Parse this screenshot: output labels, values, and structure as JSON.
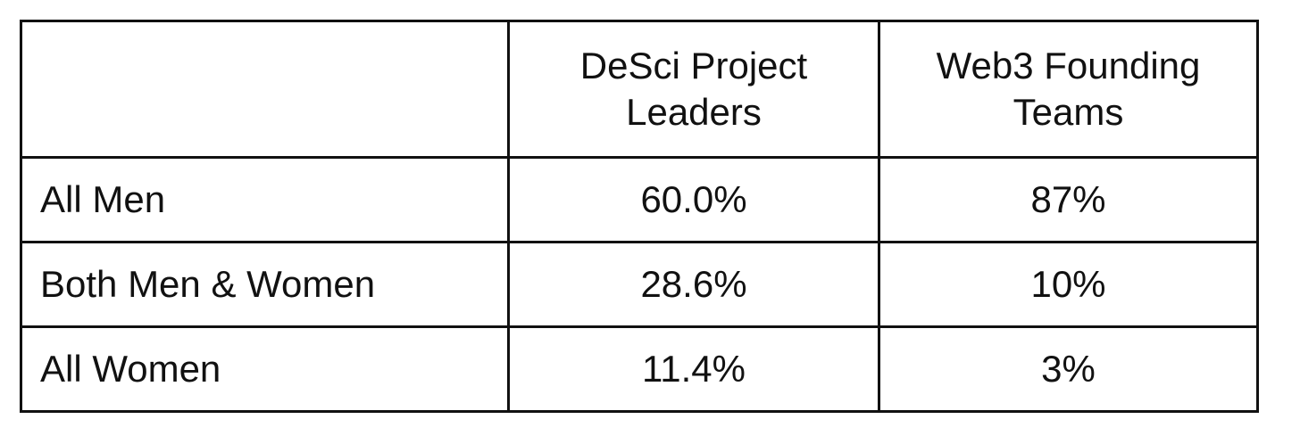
{
  "table": {
    "columns": [
      "DeSci Project Leaders",
      "Web3 Founding Teams"
    ],
    "rows": [
      [
        "All Men",
        "60.0%",
        "87%"
      ],
      [
        "Both Men & Women",
        "28.6%",
        "10%"
      ],
      [
        "All Women",
        "11.4%",
        "3%"
      ]
    ]
  }
}
